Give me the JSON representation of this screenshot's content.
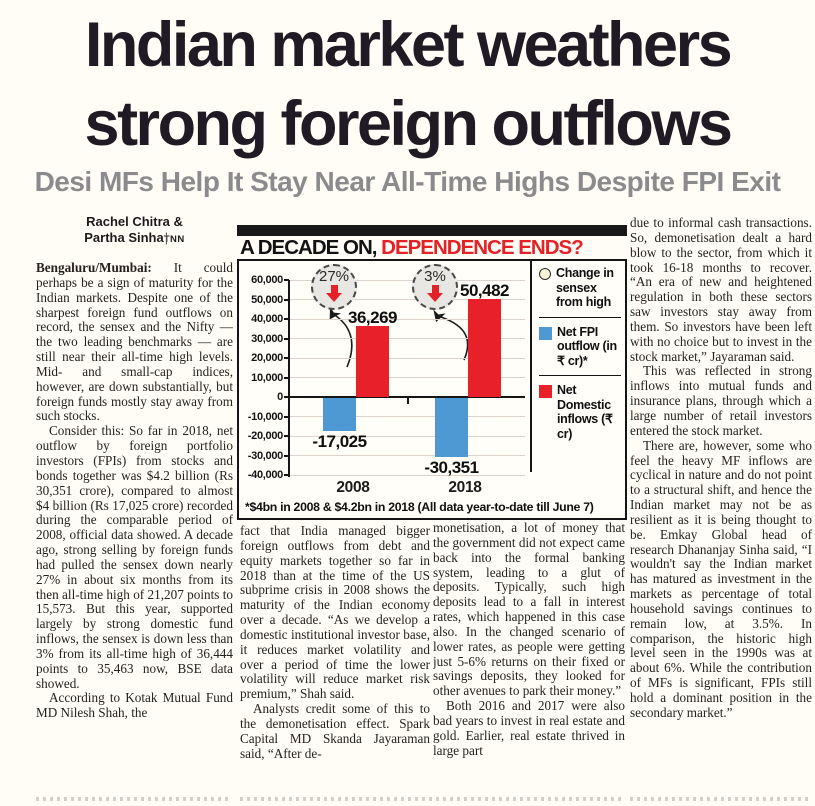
{
  "masthead": {
    "headline_line1": "Indian market weathers",
    "headline_line2": "strong foreign outflows",
    "subheadline": "Desi MFs Help It Stay Near All-Time Highs Despite FPI Exit"
  },
  "byline": {
    "line1": "Rachel Chitra &",
    "line2": "Partha Sinha",
    "agency": "TNN"
  },
  "article": {
    "dateline": "Bengaluru/Mumbai:",
    "col1": [
      "It could perhaps be a sign of maturity for the Indian markets. Despite one of the sharpest foreign fund outflows on record, the sensex and the Nifty — the two leading benchmarks — are still near their all-time high levels. Mid- and small-cap indices, however, are down substantially, but foreign funds mostly stay away from such stocks.",
      "Consider this: So far in 2018, net outflow by foreign portfolio investors (FPIs) from stocks and bonds together was $4.2 billion (Rs 30,351 crore), compared to almost $4 billion (Rs 17,025 crore) recorded during the comparable period of 2008, official data showed. A decade ago, strong selling by foreign funds had pulled the sensex down nearly 27% in about six months from its then all-time high of 21,207 points to 15,573. But this year, supported largely by strong domestic fund inflows, the sensex is down less than 3% from its all-time high of 36,444 points to 35,463 now, BSE data showed.",
      "According to Kotak Mutual Fund MD Nilesh Shah, the"
    ],
    "col2": [
      "fact that India managed bigger foreign outflows from debt and equity markets together so far in 2018 than at the time of the US subprime crisis in 2008 shows the maturity of the Indian economy over a decade. “As we develop a domestic institutional investor base, it reduces market volatility and over a period of time the lower volatility will reduce market risk premium,” Shah said.",
      "Analysts credit some of this to the demonetisation effect. Spark Capital MD Skanda Jayaraman said, “After de-"
    ],
    "col3": [
      "monetisation, a lot of money that the government did not expect came back into the formal banking system, leading to a glut of deposits. Typically, such high deposits lead to a fall in interest rates, which happened in this case also. In the changed scenario of lower rates, as people were getting just 5-6% returns on their fixed or savings deposits, they looked for other avenues to park their money.”",
      "Both 2016 and 2017 were also bad years to invest in real estate and gold. Earlier, real estate thrived in large part"
    ],
    "col4": [
      "due to informal cash transactions. So, demonetisation dealt a hard blow to the sector, from which it took 16-18 months to recover. “An era of new and heightened regulation in both these sectors saw investors stay away from them. So investors have been left with no choice but to invest in the stock market,” Jayaraman said.",
      "This was reflected in strong inflows into mutual funds and insurance plans, through which a large number of retail investors entered the stock market.",
      "There are, however, some who feel the heavy MF inflows are cyclical in nature and do not point to a structural shift, and hence the Indian market may not be as resilient as it is being thought to be. Emkay Global head of research Dhananjay Sinha said, “I wouldn't say the Indian market has matured as investment in the markets as percentage of total household savings continues to remain low, at 3.5%. In comparison, the historic high level seen in the 1990s was at about 6%. While the contribution of MFs is significant, FPIs still hold a dominant position in the secondary market.”"
    ]
  },
  "chart_data": {
    "type": "bar",
    "title_black": "A DECADE ON,",
    "title_red": " DEPENDENCE ENDS?",
    "categories": [
      "2008",
      "2018"
    ],
    "series": [
      {
        "name": "Net FPI outflow (in ₹ cr)*",
        "color": "#4e98d4",
        "values": [
          -17025,
          -30351
        ]
      },
      {
        "name": "Net Domestic inflows (₹ cr)",
        "color": "#e8202a",
        "values": [
          36269,
          50482
        ]
      }
    ],
    "annotations": [
      {
        "category": "2008",
        "label": "27%",
        "meaning": "Change in sensex from high"
      },
      {
        "category": "2018",
        "label": "3%",
        "meaning": "Change in sensex from high"
      }
    ],
    "ylim": [
      -40000,
      60000
    ],
    "ytick_step": 10000,
    "grid": true,
    "legend_position": "right",
    "legend": [
      {
        "icon": "circle",
        "color": "#f6f1d7",
        "label": "Change in sensex from high"
      },
      {
        "icon": "square",
        "color": "#4e98d4",
        "label": "Net FPI outflow (in ₹ cr)*"
      },
      {
        "icon": "square",
        "color": "#e8202a",
        "label": "Net Domestic inflows (₹ cr)"
      }
    ],
    "footnote": "*$4bn in 2008 & $4.2bn in 2018 (All data year-to-date till June 7)"
  }
}
